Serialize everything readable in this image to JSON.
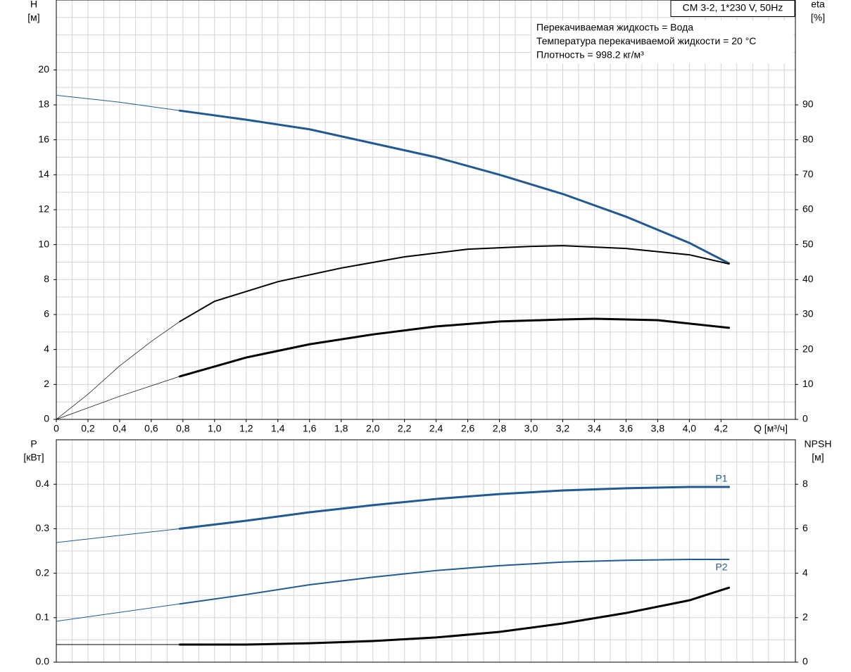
{
  "chart_data": [
    {
      "type": "line",
      "title": "CM 3-2, 1*230 V, 50Hz",
      "annotations": [
        "Перекачиваемая жидкость = Вода",
        "Температура перекачиваемой жидкости = 20 °C",
        "Плотность = 998.2 кг/м³"
      ],
      "ylabel": [
        "H",
        "[м]"
      ],
      "y2label": [
        "eta",
        "[%]"
      ],
      "xlabel": "Q [м³/ч]",
      "xlim": [
        0,
        4.67
      ],
      "xticks": [
        0,
        {
          "value": 0.2,
          "label": "0,2"
        },
        {
          "value": 0.4,
          "label": "0,4"
        },
        {
          "value": 0.6,
          "label": "0,6"
        },
        {
          "value": 0.8,
          "label": "0,8"
        },
        {
          "value": 1.0,
          "label": "1,0"
        },
        {
          "value": 1.2,
          "label": "1,2"
        },
        {
          "value": 1.4,
          "label": "1,4"
        },
        {
          "value": 1.6,
          "label": "1,6"
        },
        {
          "value": 1.8,
          "label": "1,8"
        },
        {
          "value": 2.0,
          "label": "2,0"
        },
        {
          "value": 2.2,
          "label": "2,2"
        },
        {
          "value": 2.4,
          "label": "2,4"
        },
        {
          "value": 2.6,
          "label": "2,6"
        },
        {
          "value": 2.8,
          "label": "2,8"
        },
        {
          "value": 3.0,
          "label": "3,0"
        },
        {
          "value": 3.2,
          "label": "3,2"
        },
        {
          "value": 3.4,
          "label": "3,4"
        },
        {
          "value": 3.6,
          "label": "3,6"
        },
        {
          "value": 3.8,
          "label": "3,8"
        },
        {
          "value": 4.0,
          "label": "4,0"
        },
        {
          "value": 4.2,
          "label": "4,2"
        }
      ],
      "ylim": [
        0,
        24
      ],
      "yticks": [
        0,
        2,
        4,
        6,
        8,
        10,
        12,
        14,
        16,
        18,
        20
      ],
      "y2lim": [
        0,
        120
      ],
      "y2ticks": [
        0,
        10,
        20,
        30,
        40,
        50,
        60,
        70,
        80,
        90
      ],
      "grid": true,
      "series": [
        {
          "color": "#215a92",
          "width": 1,
          "axis": "y",
          "x": [
            0,
            0.4,
            0.78
          ],
          "values": [
            18.55,
            18.15,
            17.67
          ]
        },
        {
          "color": "#215a92",
          "width": 3,
          "axis": "y",
          "x": [
            0.78,
            1.2,
            1.6,
            2.0,
            2.4,
            2.8,
            3.2,
            3.6,
            4.0,
            4.25
          ],
          "values": [
            17.67,
            17.15,
            16.6,
            15.8,
            15.0,
            14.0,
            12.9,
            11.6,
            10.1,
            8.93
          ]
        },
        {
          "color": "#000000",
          "width": 0.7,
          "axis": "y2",
          "x": [
            0,
            0.2,
            0.4,
            0.6,
            0.78
          ],
          "values": [
            0,
            7.2,
            15.3,
            22.3,
            28.0
          ]
        },
        {
          "color": "#000000",
          "width": 2,
          "axis": "y2",
          "x": [
            0.78,
            1.0,
            1.4,
            1.8,
            2.2,
            2.6,
            3.0,
            3.2,
            3.6,
            4.0,
            4.25
          ],
          "values": [
            28.0,
            33.8,
            39.4,
            43.3,
            46.5,
            48.7,
            49.5,
            49.7,
            48.9,
            47.1,
            44.5
          ]
        },
        {
          "color": "#000000",
          "width": 0.7,
          "axis": "y2",
          "x": [
            0,
            0.4,
            0.78
          ],
          "values": [
            0,
            6.6,
            12.3
          ]
        },
        {
          "color": "#000000",
          "width": 3,
          "axis": "y2",
          "x": [
            0.78,
            1.2,
            1.6,
            2.0,
            2.4,
            2.8,
            3.2,
            3.4,
            3.8,
            4.25
          ],
          "values": [
            12.3,
            17.7,
            21.5,
            24.3,
            26.6,
            28.0,
            28.6,
            28.8,
            28.4,
            26.2
          ]
        }
      ]
    },
    {
      "type": "line",
      "ylabel": [
        "P",
        "[кВт]"
      ],
      "y2label": [
        "NPSH",
        "[м]"
      ],
      "xlim": [
        0,
        4.67
      ],
      "ylim": [
        0,
        0.5
      ],
      "yticks": [
        {
          "value": 0,
          "label": "0.0"
        },
        0.1,
        0.2,
        0.3,
        0.4
      ],
      "y2lim": [
        0,
        10
      ],
      "y2ticks": [
        0,
        2,
        4,
        6,
        8
      ],
      "grid": true,
      "series": [
        {
          "color": "#215a92",
          "width": 1,
          "axis": "y",
          "x": [
            0,
            0.4,
            0.78
          ],
          "values": [
            0.269,
            0.285,
            0.3
          ]
        },
        {
          "name": "P1",
          "label": "above",
          "color": "#215a92",
          "width": 3,
          "axis": "y",
          "x": [
            0.78,
            1.2,
            1.6,
            2.0,
            2.4,
            2.8,
            3.2,
            3.6,
            4.0,
            4.25
          ],
          "values": [
            0.3,
            0.318,
            0.337,
            0.353,
            0.367,
            0.378,
            0.386,
            0.391,
            0.394,
            0.394
          ]
        },
        {
          "color": "#215a92",
          "width": 1,
          "axis": "y",
          "x": [
            0,
            0.4,
            0.78
          ],
          "values": [
            0.092,
            0.112,
            0.131
          ]
        },
        {
          "name": "P2",
          "label": "below",
          "color": "#215a92",
          "width": 2,
          "axis": "y",
          "x": [
            0.78,
            1.2,
            1.6,
            2.0,
            2.4,
            2.8,
            3.2,
            3.6,
            4.0,
            4.25
          ],
          "values": [
            0.131,
            0.152,
            0.174,
            0.191,
            0.206,
            0.217,
            0.225,
            0.229,
            0.231,
            0.231
          ]
        },
        {
          "color": "#000000",
          "width": 1,
          "axis": "y2",
          "x": [
            0,
            0.78
          ],
          "values": [
            0.79,
            0.79
          ]
        },
        {
          "color": "#000000",
          "width": 3,
          "axis": "y2",
          "x": [
            0.78,
            1.2,
            1.6,
            2.0,
            2.4,
            2.8,
            3.2,
            3.6,
            4.0,
            4.25
          ],
          "values": [
            0.79,
            0.79,
            0.85,
            0.95,
            1.11,
            1.36,
            1.74,
            2.21,
            2.78,
            3.35
          ]
        }
      ]
    }
  ]
}
